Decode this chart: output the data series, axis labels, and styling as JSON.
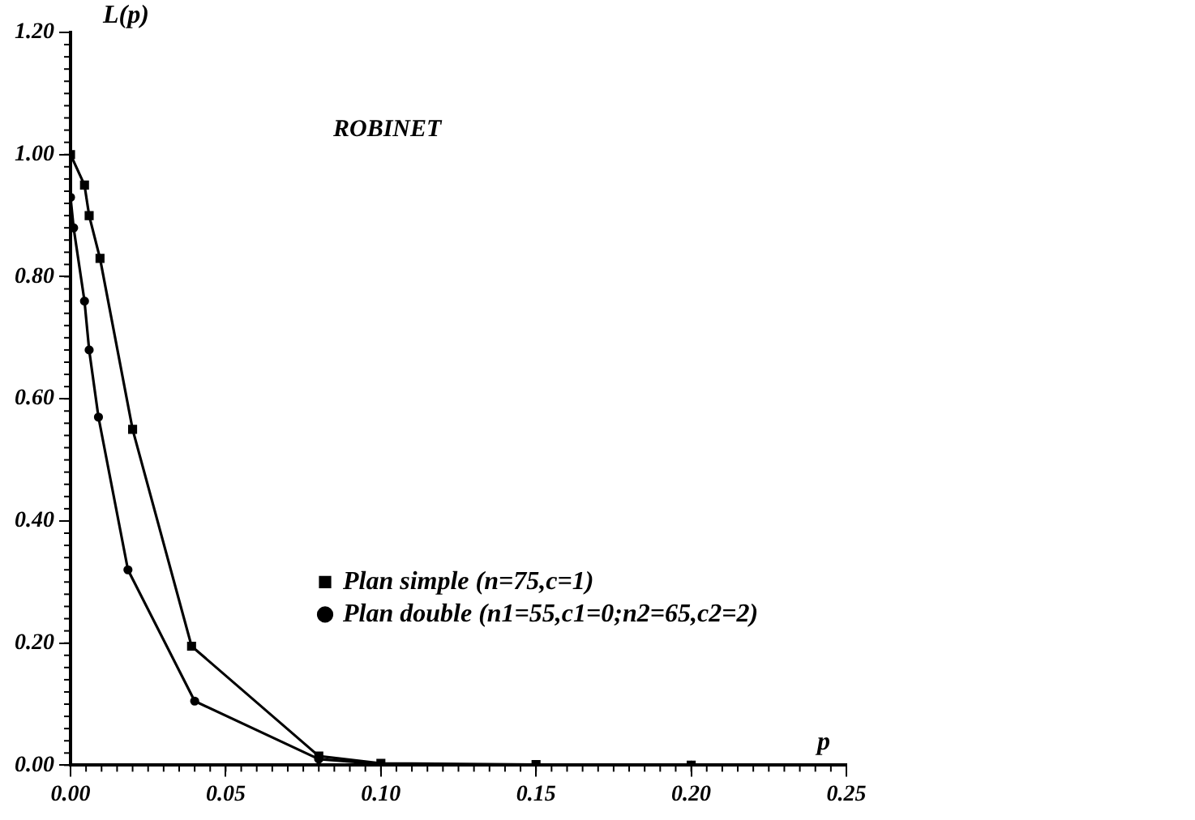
{
  "chart_data": {
    "type": "line",
    "xlabel": "p",
    "ylabel": "L(p)",
    "annotations": [
      "ROBINET"
    ],
    "xlim": [
      0,
      0.25
    ],
    "ylim": [
      0,
      1.2
    ],
    "xticks": [
      {
        "value": 0,
        "label": "0.00"
      },
      {
        "value": 0.05,
        "label": "0.05"
      },
      {
        "value": 0.1,
        "label": "0.10"
      },
      {
        "value": 0.15,
        "label": "0.15"
      },
      {
        "value": 0.2,
        "label": "0.20"
      },
      {
        "value": 0.25,
        "label": "0.25"
      }
    ],
    "yticks": [
      {
        "value": 0,
        "label": "0.00"
      },
      {
        "value": 0.2,
        "label": "0.20"
      },
      {
        "value": 0.4,
        "label": "0.40"
      },
      {
        "value": 0.6,
        "label": "0.60"
      },
      {
        "value": 0.8,
        "label": "0.80"
      },
      {
        "value": 1,
        "label": "1.00"
      },
      {
        "value": 1.2,
        "label": "1.20"
      }
    ],
    "grid": false,
    "legend": "bottom right",
    "line_style": "solid",
    "series": [
      {
        "name": "Plan simple (n=75,c=1)",
        "color": "#000000",
        "marker": "square",
        "x": [
          0,
          0.0045,
          0.006,
          0.0095,
          0.02,
          0.039,
          0.08,
          0.1,
          0.15,
          0.2
        ],
        "values": [
          1.0,
          0.95,
          0.9,
          0.83,
          0.55,
          0.195,
          0.015,
          0.003,
          0.001,
          0.0
        ]
      },
      {
        "name": "Plan double (n1=55,c1=0;n2=65,c2=2)",
        "color": "#000000",
        "marker": "circle",
        "x": [
          0,
          0.001,
          0.0045,
          0.006,
          0.009,
          0.0185,
          0.04,
          0.08,
          0.1,
          0.15,
          0.2
        ],
        "values": [
          0.93,
          0.88,
          0.76,
          0.68,
          0.57,
          0.32,
          0.105,
          0.01,
          0.002,
          0.0,
          0.0
        ]
      }
    ]
  }
}
